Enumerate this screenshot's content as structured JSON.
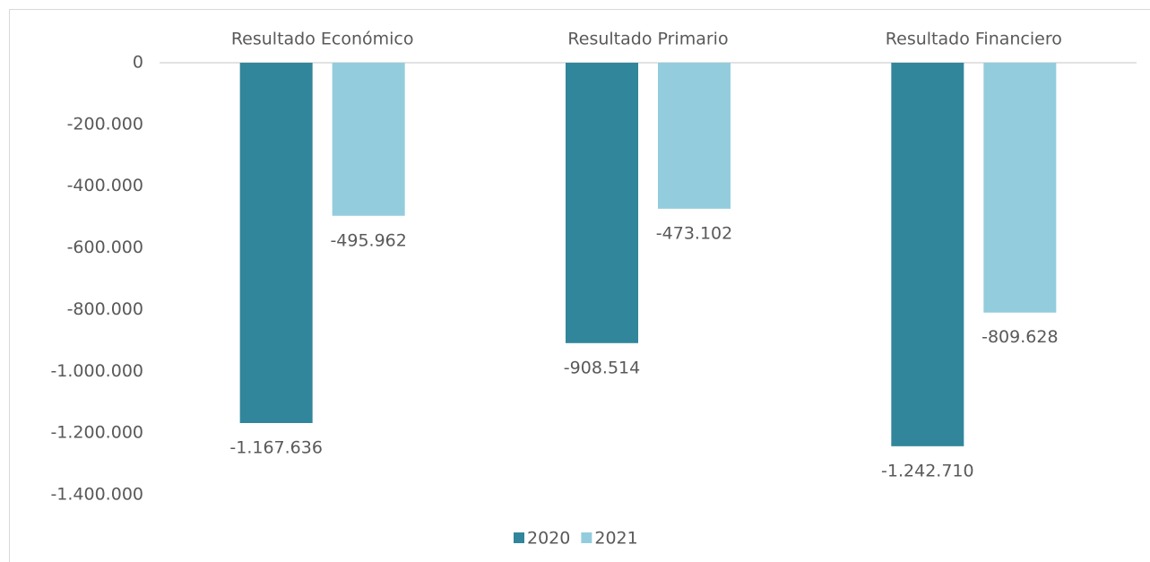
{
  "chart_data": {
    "type": "bar",
    "categories": [
      "Resultado Económico",
      "Resultado Primario",
      "Resultado Financiero"
    ],
    "series": [
      {
        "name": "2020",
        "color": "#31869b",
        "values": [
          -1167636,
          -908514,
          -1242710
        ],
        "value_labels": [
          "-1.167.636",
          "-908.514",
          "-1.242.710"
        ]
      },
      {
        "name": "2021",
        "color": "#93cddd",
        "values": [
          -495962,
          -473102,
          -809628
        ],
        "value_labels": [
          "-495.962",
          "-473.102",
          "-809.628"
        ]
      }
    ],
    "ylim": [
      -1400000,
      0
    ],
    "yticks": [
      0,
      {
        "value": -200000,
        "label": "-200.000"
      },
      {
        "value": -400000,
        "label": "-400.000"
      },
      {
        "value": -600000,
        "label": "-600.000"
      },
      {
        "value": -800000,
        "label": "-800.000"
      },
      {
        "value": -1000000,
        "label": "-1.000.000"
      },
      {
        "value": -1200000,
        "label": "-1.200.000"
      },
      {
        "value": -1400000,
        "label": "-1.400.000"
      }
    ],
    "legend": "bottom"
  }
}
